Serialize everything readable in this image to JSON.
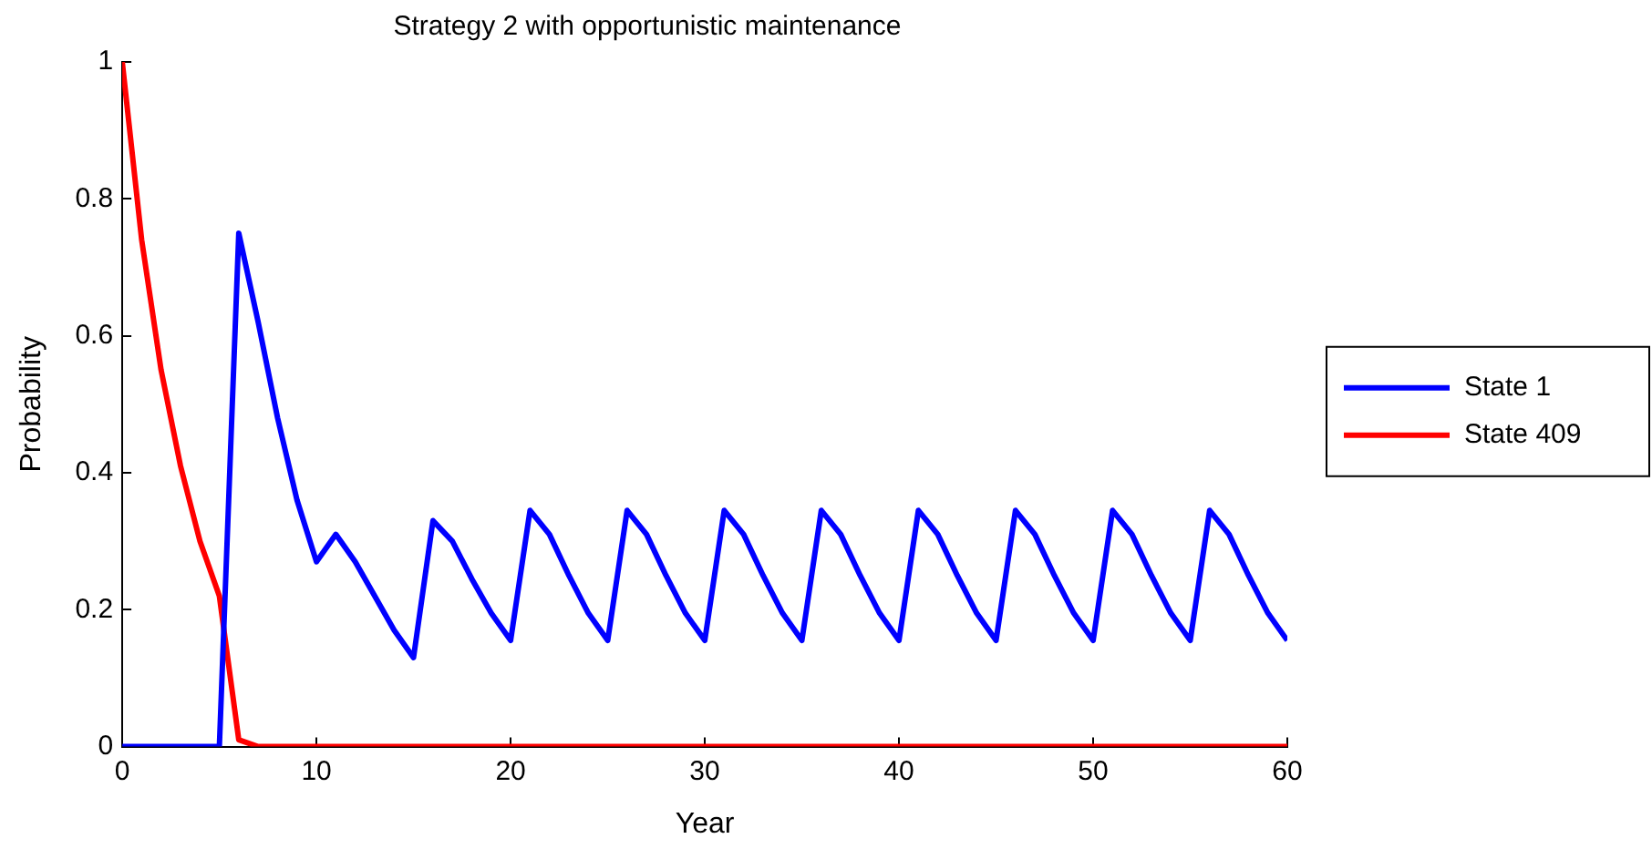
{
  "chart_data": {
    "type": "line",
    "title": "Strategy 2 with opportunistic maintenance",
    "xlabel": "Year",
    "ylabel": "Probability",
    "x": [
      0,
      1,
      2,
      3,
      4,
      5,
      6,
      7,
      8,
      9,
      10,
      11,
      12,
      13,
      14,
      15,
      16,
      17,
      18,
      19,
      20,
      21,
      22,
      23,
      24,
      25,
      26,
      27,
      28,
      29,
      30,
      31,
      32,
      33,
      34,
      35,
      36,
      37,
      38,
      39,
      40,
      41,
      42,
      43,
      44,
      45,
      46,
      47,
      48,
      49,
      50,
      51,
      52,
      53,
      54,
      55,
      56,
      57,
      58,
      59,
      60
    ],
    "series": [
      {
        "name": "State 1",
        "color": "#0000ff",
        "values": [
          0,
          0,
          0,
          0,
          0,
          0,
          0.75,
          0.62,
          0.48,
          0.36,
          0.27,
          0.31,
          0.27,
          0.22,
          0.17,
          0.13,
          0.33,
          0.3,
          0.245,
          0.195,
          0.155,
          0.345,
          0.31,
          0.25,
          0.195,
          0.155,
          0.345,
          0.31,
          0.25,
          0.195,
          0.155,
          0.345,
          0.31,
          0.25,
          0.195,
          0.155,
          0.345,
          0.31,
          0.25,
          0.195,
          0.155,
          0.345,
          0.31,
          0.25,
          0.195,
          0.155,
          0.345,
          0.31,
          0.25,
          0.195,
          0.155,
          0.345,
          0.31,
          0.25,
          0.195,
          0.155,
          0.345,
          0.31,
          0.25,
          0.195,
          0.155
        ]
      },
      {
        "name": "State 409",
        "color": "#ff0000",
        "values": [
          1,
          0.74,
          0.55,
          0.41,
          0.3,
          0.22,
          0.01,
          0,
          0,
          0,
          0,
          0,
          0,
          0,
          0,
          0,
          0,
          0,
          0,
          0,
          0,
          0,
          0,
          0,
          0,
          0,
          0,
          0,
          0,
          0,
          0,
          0,
          0,
          0,
          0,
          0,
          0,
          0,
          0,
          0,
          0,
          0,
          0,
          0,
          0,
          0,
          0,
          0,
          0,
          0,
          0,
          0,
          0,
          0,
          0,
          0,
          0,
          0,
          0,
          0,
          0
        ]
      }
    ],
    "xlim": [
      0,
      60
    ],
    "xticks": [
      0,
      10,
      20,
      30,
      40,
      50,
      60
    ],
    "ylim": [
      0,
      1
    ],
    "yticks": [
      0,
      0.2,
      0.4,
      0.6,
      0.8,
      1
    ],
    "grid": false,
    "legend": "right",
    "marker": "none",
    "line_style": "solid"
  }
}
